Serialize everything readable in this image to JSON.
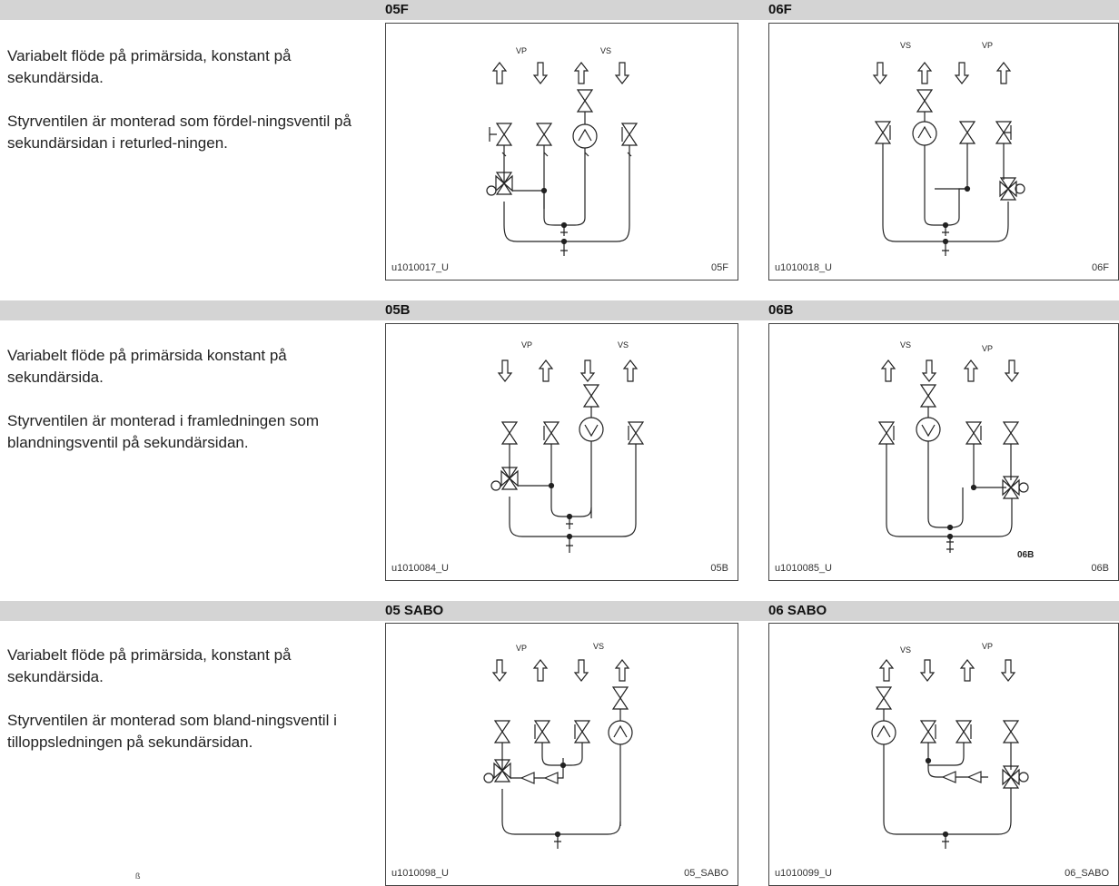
{
  "rows": [
    {
      "description": [
        "Variabelt flöde på primärsida, konstant på sekundärsida.",
        "Styrventilen är monterad som fördel-ningsventil på sekundärsidan i returled-ningen."
      ],
      "panels": [
        {
          "title": "05F",
          "code": "u1010017_U",
          "label": "05F",
          "labels_top": [
            "VP",
            "VS"
          ]
        },
        {
          "title": "06F",
          "code": "u1010018_U",
          "label": "06F",
          "labels_top": [
            "VS",
            "VP"
          ]
        }
      ]
    },
    {
      "description": [
        "Variabelt flöde på primärsida konstant på sekundärsida.",
        "Styrventilen är monterad i framledningen som blandningsventil på sekundärsidan."
      ],
      "panels": [
        {
          "title": "05B",
          "code": "u1010084_U",
          "label": "05B",
          "labels_top": [
            "VP",
            "VS"
          ]
        },
        {
          "title": "06B",
          "code": "u1010085_U",
          "label": "06B",
          "labels_top": [
            "VS",
            "VP"
          ],
          "stray": "06B"
        }
      ]
    },
    {
      "description": [
        "Variabelt flöde på primärsida, konstant på sekundärsida.",
        "Styrventilen är monterad som bland-ningsventil i tilloppsledningen på sekundärsidan."
      ],
      "panels": [
        {
          "title": "05 SABO",
          "code": "u1010098_U",
          "label": "05_SABO",
          "labels_top": [
            "VP",
            "VS"
          ]
        },
        {
          "title": "06 SABO",
          "code": "u1010099_U",
          "label": "06_SABO",
          "labels_top": [
            "VS",
            "VP"
          ]
        }
      ]
    }
  ],
  "footer_mark": "ß"
}
